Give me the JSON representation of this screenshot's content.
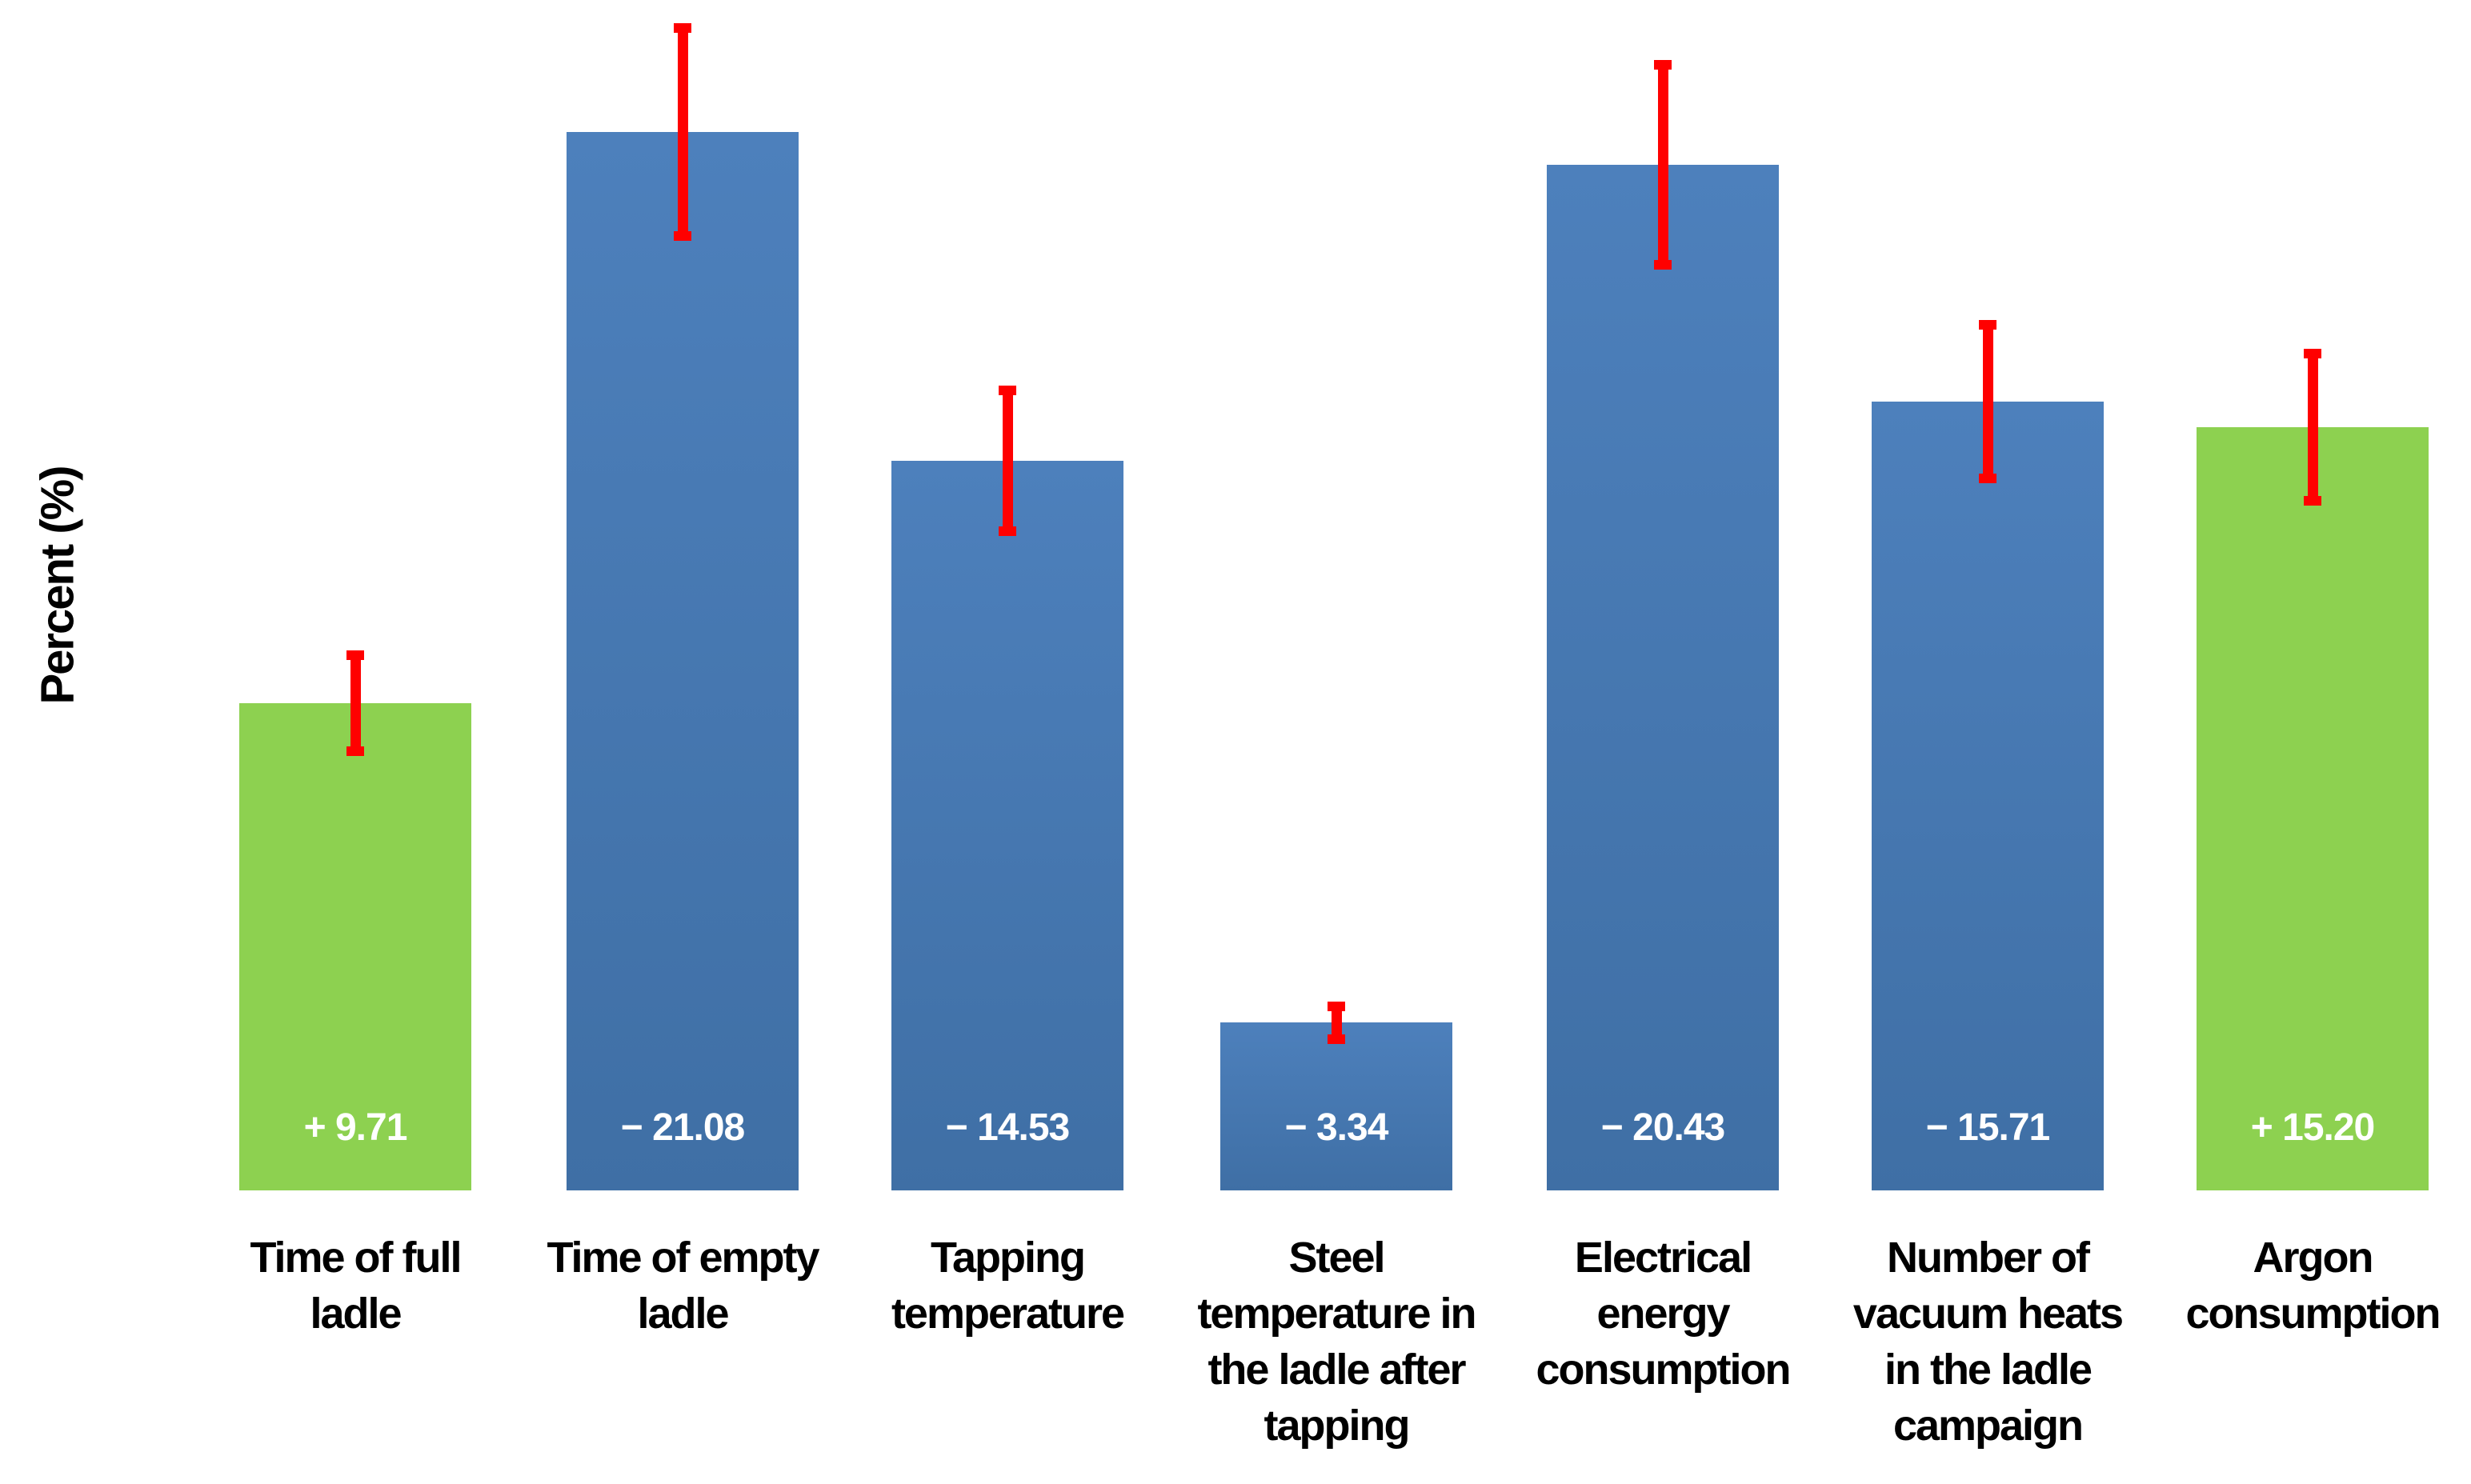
{
  "page": {
    "background_color": "#FFFFFF"
  },
  "chart_data": {
    "type": "bar",
    "title": "",
    "xlabel": "",
    "ylabel": "Percent (%)",
    "ylim": [
      0,
      23.7
    ],
    "grid": false,
    "legend": "none",
    "axis_lines": false,
    "value_labels_position": "inside-bottom",
    "error_bars": true,
    "bars": [
      {
        "category": "Time of full ladle",
        "label_lines": [
          "Time of full",
          "ladle"
        ],
        "value": 9.71,
        "value_label": "+ 9.71",
        "error": 1.05,
        "color_role": "positive"
      },
      {
        "category": "Time of empty ladle",
        "label_lines": [
          "Time of empty",
          "ladle"
        ],
        "value": -21.08,
        "value_label": "− 21.08",
        "error": 2.17,
        "color_role": "negative"
      },
      {
        "category": "Tapping temperature",
        "label_lines": [
          "Tapping",
          "temperature"
        ],
        "value": -14.53,
        "value_label": "− 14.53",
        "error": 1.5,
        "color_role": "negative"
      },
      {
        "category": "Steel temperature in the ladle after tapping",
        "label_lines": [
          "Steel",
          "temperature in",
          "the ladle after",
          "tapping"
        ],
        "value": -3.34,
        "value_label": "− 3.34",
        "error": 0.42,
        "color_role": "negative"
      },
      {
        "category": "Electrical energy consumption",
        "label_lines": [
          "Electrical",
          "energy",
          "consumption"
        ],
        "value": -20.43,
        "value_label": "− 20.43",
        "error": 2.09,
        "color_role": "negative"
      },
      {
        "category": "Number of vacuum heats in the ladle campaign",
        "label_lines": [
          "Number of",
          "vacuum heats",
          "in the ladle",
          "campaign"
        ],
        "value": -15.71,
        "value_label": "− 15.71",
        "error": 1.63,
        "color_role": "negative"
      },
      {
        "category": "Argon consumption",
        "label_lines": [
          "Argon",
          "consumption"
        ],
        "value": 15.2,
        "value_label": "+ 15.20",
        "error": 1.56,
        "color_role": "positive"
      }
    ],
    "colors": {
      "positive_bar": "#8DD150",
      "negative_bar_top": "#4D80BC",
      "negative_bar_bottom": "#3F6FA5",
      "error_bar": "#FF0000",
      "value_label_text": "#FFFFFF",
      "category_label_text": "#000000",
      "axis_label_text": "#000000"
    }
  }
}
